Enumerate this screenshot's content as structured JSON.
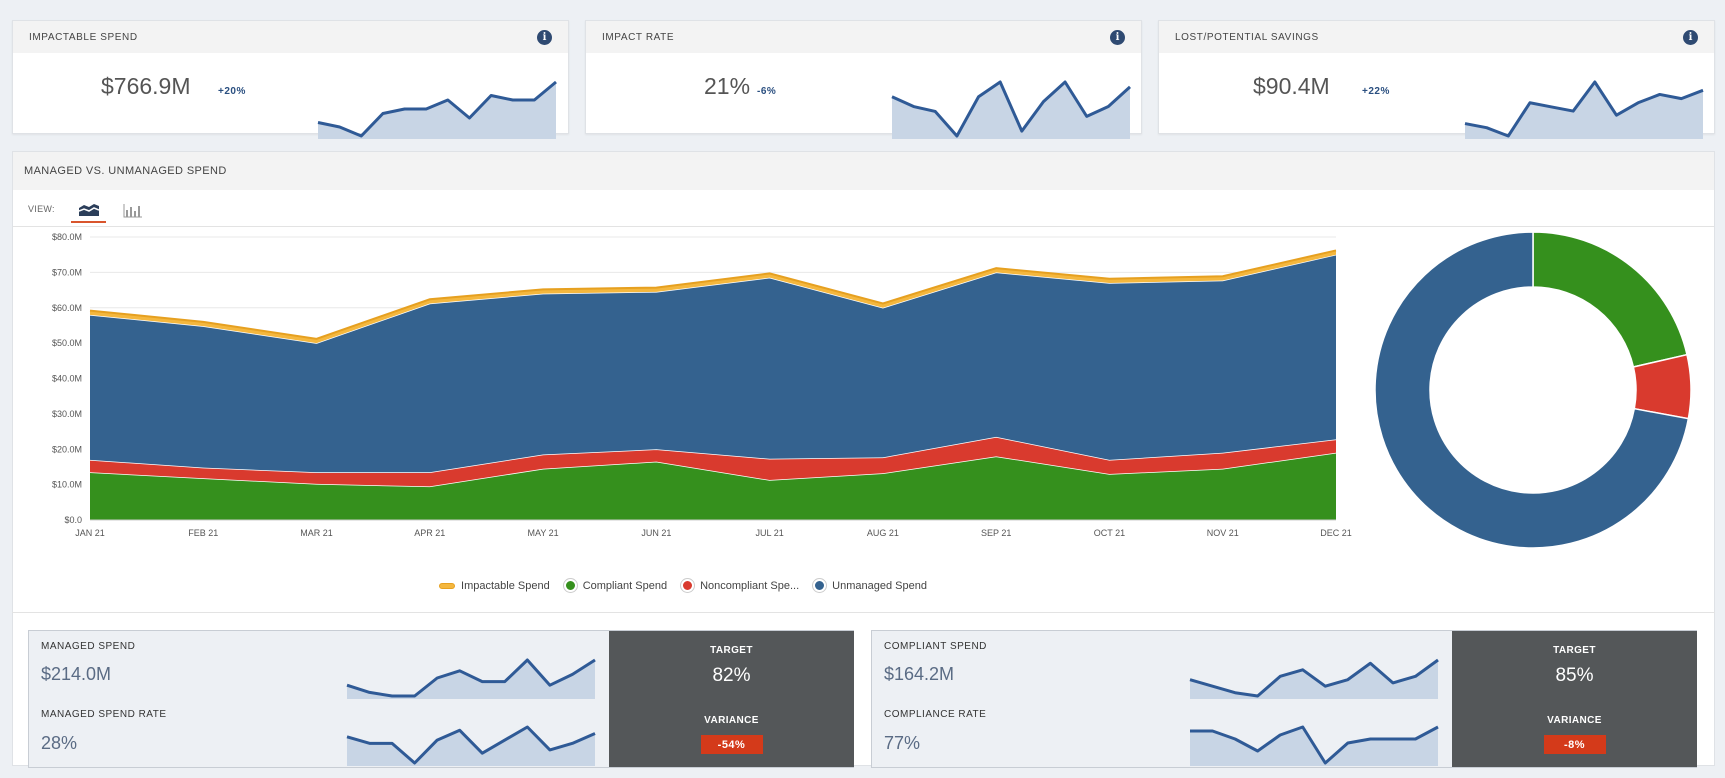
{
  "kpis": [
    {
      "title": "IMPACTABLE SPEND",
      "value": "$766.9M",
      "delta": "+20%",
      "trend": [
        4,
        3,
        1,
        6,
        7,
        7,
        9,
        5,
        10,
        9,
        9,
        13
      ]
    },
    {
      "title": "IMPACT RATE",
      "value": "21%",
      "delta": "-6%",
      "trend": [
        9,
        7,
        6,
        1,
        9,
        12,
        2,
        8,
        12,
        5,
        7,
        11
      ]
    },
    {
      "title": "LOST/POTENTIAL SAVINGS",
      "value": "$90.4M",
      "delta": "+22%",
      "trend": [
        4,
        3,
        1,
        9,
        8,
        7,
        14,
        6,
        9,
        11,
        10,
        12
      ]
    }
  ],
  "main": {
    "title": "MANAGED VS. UNMANAGED SPEND",
    "view_label": "VIEW:",
    "legend": [
      "Impactable Spend",
      "Compliant Spend",
      "Noncompliant Spe...",
      "Unmanaged Spend"
    ]
  },
  "chart_data": {
    "type": "area",
    "stacked": true,
    "categories": [
      "JAN 21",
      "FEB 21",
      "MAR 21",
      "APR 21",
      "MAY 21",
      "JUN 21",
      "JUL 21",
      "AUG 21",
      "SEP 21",
      "OCT 21",
      "NOV 21",
      "DEC 21"
    ],
    "y_ticks": [
      "$0.0",
      "$10.0M",
      "$20.0M",
      "$30.0M",
      "$40.0M",
      "$50.0M",
      "$60.0M",
      "$70.0M",
      "$80.0M"
    ],
    "ylim": [
      0,
      80
    ],
    "series": [
      {
        "name": "Compliant Spend",
        "color": "#35901d",
        "values": [
          13.5,
          11.8,
          10.2,
          9.5,
          14.5,
          16.5,
          11.3,
          13.2,
          18.0,
          13.0,
          14.5,
          19.0
        ]
      },
      {
        "name": "Noncompliant Spend",
        "color": "#d93a2e",
        "values": [
          3.5,
          3.0,
          3.3,
          4.0,
          4.0,
          3.5,
          6.0,
          4.5,
          5.5,
          4.0,
          4.5,
          3.8
        ]
      },
      {
        "name": "Unmanaged Spend",
        "color": "#34628f",
        "values": [
          41.0,
          40.0,
          36.5,
          47.7,
          45.5,
          44.5,
          51.2,
          42.3,
          46.5,
          50.0,
          48.7,
          52.2
        ]
      },
      {
        "name": "Impactable Spend",
        "color": "#f4b73e",
        "values": [
          1.2,
          1.2,
          1.2,
          1.2,
          1.2,
          1.2,
          1.2,
          1.2,
          1.2,
          1.2,
          1.2,
          1.2
        ]
      }
    ],
    "donut": [
      {
        "name": "Compliant Spend",
        "value": 164.2,
        "color": "#35901d"
      },
      {
        "name": "Noncompliant Spend",
        "value": 49.8,
        "color": "#d93a2e"
      },
      {
        "name": "Unmanaged Spend",
        "value": 552.9,
        "color": "#34628f"
      }
    ]
  },
  "summaries": [
    {
      "label1": "MANAGED SPEND",
      "value1": "$214.0M",
      "trend1": [
        5,
        3,
        2,
        2,
        7,
        9,
        6,
        6,
        12,
        5,
        8,
        12
      ],
      "label2": "MANAGED SPEND RATE",
      "value2": "28%",
      "trend2": [
        9,
        7,
        7,
        1,
        8,
        11,
        4,
        8,
        12,
        5,
        7,
        10
      ],
      "target_label": "TARGET",
      "target": "82%",
      "variance_label": "VARIANCE",
      "variance": "-54%"
    },
    {
      "label1": "COMPLIANT SPEND",
      "value1": "$164.2M",
      "trend1": [
        7,
        5,
        3,
        2,
        8,
        10,
        5,
        7,
        12,
        6,
        8,
        13
      ],
      "label2": "COMPLIANCE RATE",
      "value2": "77%",
      "trend2": [
        10,
        10,
        8,
        5,
        9,
        11,
        2,
        7,
        8,
        8,
        8,
        11
      ],
      "target_label": "TARGET",
      "target": "85%",
      "variance_label": "VARIANCE",
      "variance": "-8%"
    }
  ]
}
